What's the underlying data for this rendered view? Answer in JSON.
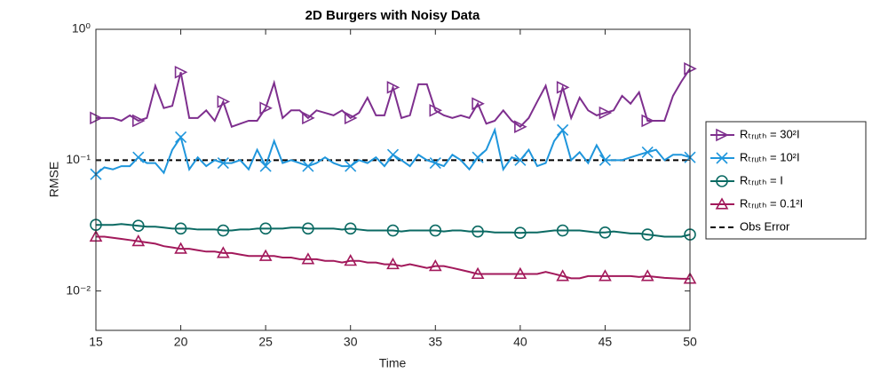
{
  "chart_data": {
    "type": "line",
    "title": "2D Burgers with Noisy Data",
    "xlabel": "Time",
    "ylabel": "RMSE",
    "log_y": true,
    "grid": false,
    "legend_position": "outside-right",
    "xlim": [
      15,
      50
    ],
    "xticks": [
      15,
      20,
      25,
      30,
      35,
      40,
      45,
      50
    ],
    "ylim": [
      0.005,
      1
    ],
    "yticks": [
      {
        "value": 0.01,
        "label": "10⁻²"
      },
      {
        "value": 0.1,
        "label": "10⁻¹"
      },
      {
        "value": 1,
        "label": "10⁰"
      }
    ],
    "marker_every": 5,
    "x": [
      15,
      15.5,
      16,
      16.5,
      17,
      17.5,
      18,
      18.5,
      19,
      19.5,
      20,
      20.5,
      21,
      21.5,
      22,
      22.5,
      23,
      23.5,
      24,
      24.5,
      25,
      25.5,
      26,
      26.5,
      27,
      27.5,
      28,
      28.5,
      29,
      29.5,
      30,
      30.5,
      31,
      31.5,
      32,
      32.5,
      33,
      33.5,
      34,
      34.5,
      35,
      35.5,
      36,
      36.5,
      37,
      37.5,
      38,
      38.5,
      39,
      39.5,
      40,
      40.5,
      41,
      41.5,
      42,
      42.5,
      43,
      43.5,
      44,
      44.5,
      45,
      45.5,
      46,
      46.5,
      47,
      47.5,
      48,
      48.5,
      49,
      49.5,
      50
    ],
    "series": [
      {
        "name": "Rₜᵣᵤₜₕ = 30²I",
        "color": "#7e2f8e",
        "marker": "triangle-right",
        "values": [
          0.21,
          0.21,
          0.21,
          0.2,
          0.22,
          0.2,
          0.21,
          0.37,
          0.25,
          0.26,
          0.47,
          0.21,
          0.21,
          0.24,
          0.2,
          0.28,
          0.18,
          0.19,
          0.2,
          0.2,
          0.25,
          0.39,
          0.21,
          0.24,
          0.24,
          0.21,
          0.24,
          0.23,
          0.22,
          0.24,
          0.21,
          0.23,
          0.3,
          0.22,
          0.22,
          0.36,
          0.21,
          0.22,
          0.38,
          0.38,
          0.24,
          0.22,
          0.21,
          0.22,
          0.21,
          0.27,
          0.19,
          0.2,
          0.24,
          0.2,
          0.18,
          0.21,
          0.28,
          0.37,
          0.21,
          0.36,
          0.21,
          0.3,
          0.24,
          0.22,
          0.23,
          0.24,
          0.31,
          0.27,
          0.33,
          0.2,
          0.2,
          0.2,
          0.31,
          0.4,
          0.5
        ]
      },
      {
        "name": "Rₜᵣᵤₜₕ = 10²I",
        "color": "#1f96dc",
        "marker": "x",
        "values": [
          0.078,
          0.088,
          0.085,
          0.09,
          0.09,
          0.105,
          0.095,
          0.095,
          0.08,
          0.12,
          0.15,
          0.085,
          0.105,
          0.09,
          0.1,
          0.095,
          0.095,
          0.1,
          0.085,
          0.12,
          0.09,
          0.14,
          0.095,
          0.1,
          0.095,
          0.09,
          0.095,
          0.105,
          0.095,
          0.09,
          0.09,
          0.1,
          0.095,
          0.105,
          0.09,
          0.11,
          0.1,
          0.09,
          0.11,
          0.1,
          0.095,
          0.09,
          0.11,
          0.1,
          0.085,
          0.105,
          0.12,
          0.17,
          0.085,
          0.105,
          0.1,
          0.12,
          0.09,
          0.095,
          0.14,
          0.17,
          0.1,
          0.115,
          0.095,
          0.13,
          0.1,
          0.1,
          0.1,
          0.105,
          0.11,
          0.115,
          0.12,
          0.1,
          0.11,
          0.11,
          0.105
        ]
      },
      {
        "name": "Rₜᵣᵤₜₕ = I",
        "color": "#0b6a63",
        "marker": "circle",
        "values": [
          0.032,
          0.032,
          0.032,
          0.0325,
          0.032,
          0.0315,
          0.031,
          0.031,
          0.0305,
          0.03,
          0.03,
          0.03,
          0.0295,
          0.0295,
          0.0295,
          0.029,
          0.029,
          0.0295,
          0.0295,
          0.03,
          0.03,
          0.03,
          0.03,
          0.0305,
          0.0305,
          0.03,
          0.03,
          0.03,
          0.03,
          0.0295,
          0.03,
          0.0295,
          0.029,
          0.029,
          0.029,
          0.029,
          0.0285,
          0.029,
          0.029,
          0.029,
          0.029,
          0.0285,
          0.029,
          0.029,
          0.0285,
          0.0285,
          0.0285,
          0.028,
          0.028,
          0.028,
          0.0278,
          0.028,
          0.028,
          0.0285,
          0.029,
          0.029,
          0.029,
          0.029,
          0.0285,
          0.028,
          0.028,
          0.0285,
          0.028,
          0.0275,
          0.0275,
          0.027,
          0.0265,
          0.026,
          0.026,
          0.026,
          0.027
        ]
      },
      {
        "name": "Rₜᵣᵤₜₕ = 0.1²I",
        "color": "#a2195b",
        "marker": "triangle-up",
        "values": [
          0.026,
          0.026,
          0.0255,
          0.025,
          0.0245,
          0.024,
          0.0235,
          0.023,
          0.022,
          0.0215,
          0.021,
          0.021,
          0.0205,
          0.02,
          0.02,
          0.0195,
          0.0195,
          0.019,
          0.0185,
          0.0185,
          0.0185,
          0.0185,
          0.018,
          0.018,
          0.0175,
          0.0175,
          0.0175,
          0.017,
          0.017,
          0.0165,
          0.017,
          0.017,
          0.0165,
          0.0165,
          0.016,
          0.016,
          0.0155,
          0.016,
          0.0155,
          0.015,
          0.0155,
          0.0155,
          0.015,
          0.0145,
          0.014,
          0.0135,
          0.0135,
          0.0135,
          0.0135,
          0.0135,
          0.0135,
          0.0135,
          0.0135,
          0.014,
          0.0135,
          0.013,
          0.0125,
          0.0125,
          0.013,
          0.013,
          0.013,
          0.013,
          0.013,
          0.013,
          0.0128,
          0.013,
          0.0128,
          0.0126,
          0.0125,
          0.0124,
          0.0124
        ]
      }
    ],
    "reference_line": {
      "name": "Obs Error",
      "value": 0.1,
      "color": "#000000"
    }
  }
}
